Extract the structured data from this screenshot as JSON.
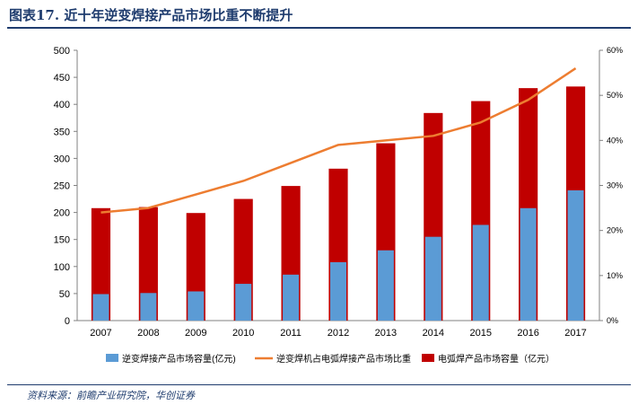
{
  "header": {
    "title": "图表17.  近十年逆变焊接产品市场比重不断提升"
  },
  "footer": {
    "source": "资料来源：前瞻产业研究院，华创证券"
  },
  "colors": {
    "bar_red": "#c00000",
    "bar_blue": "#5b9bd5",
    "line_orange": "#ed7d31",
    "title_blue": "#1f3c6e",
    "axis_text": "#000000"
  },
  "chart_data": {
    "type": "bar",
    "categories": [
      "2007",
      "2008",
      "2009",
      "2010",
      "2011",
      "2012",
      "2013",
      "2014",
      "2015",
      "2016",
      "2017"
    ],
    "series": [
      {
        "name": "电弧焊产品市场容量（亿元）",
        "kind": "bar",
        "axis": "left",
        "color": "#c00000",
        "values": [
          208,
          210,
          199,
          225,
          249,
          281,
          328,
          384,
          406,
          430,
          433
        ]
      },
      {
        "name": "逆变焊接产品市场容量(亿元)",
        "kind": "bar",
        "axis": "left",
        "color": "#5b9bd5",
        "values": [
          49,
          51,
          54,
          68,
          85,
          108,
          130,
          155,
          177,
          208,
          241
        ]
      },
      {
        "name": "逆变焊机占电弧焊接产品市场比重",
        "kind": "line",
        "axis": "right",
        "color": "#ed7d31",
        "values": [
          0.24,
          0.25,
          0.28,
          0.31,
          0.35,
          0.39,
          0.4,
          0.41,
          0.44,
          0.49,
          0.56
        ]
      }
    ],
    "y_left": {
      "min": 0,
      "max": 500,
      "step": 50,
      "ticks": [
        "0",
        "50",
        "100",
        "150",
        "200",
        "250",
        "300",
        "350",
        "400",
        "450",
        "500"
      ]
    },
    "y_right": {
      "min": 0,
      "max": 0.6,
      "step": 0.1,
      "ticks": [
        "0%",
        "10%",
        "20%",
        "30%",
        "40%",
        "50%",
        "60%"
      ]
    },
    "legend_order": [
      1,
      2,
      0
    ],
    "legend_placement": "bottom",
    "grid": false
  }
}
